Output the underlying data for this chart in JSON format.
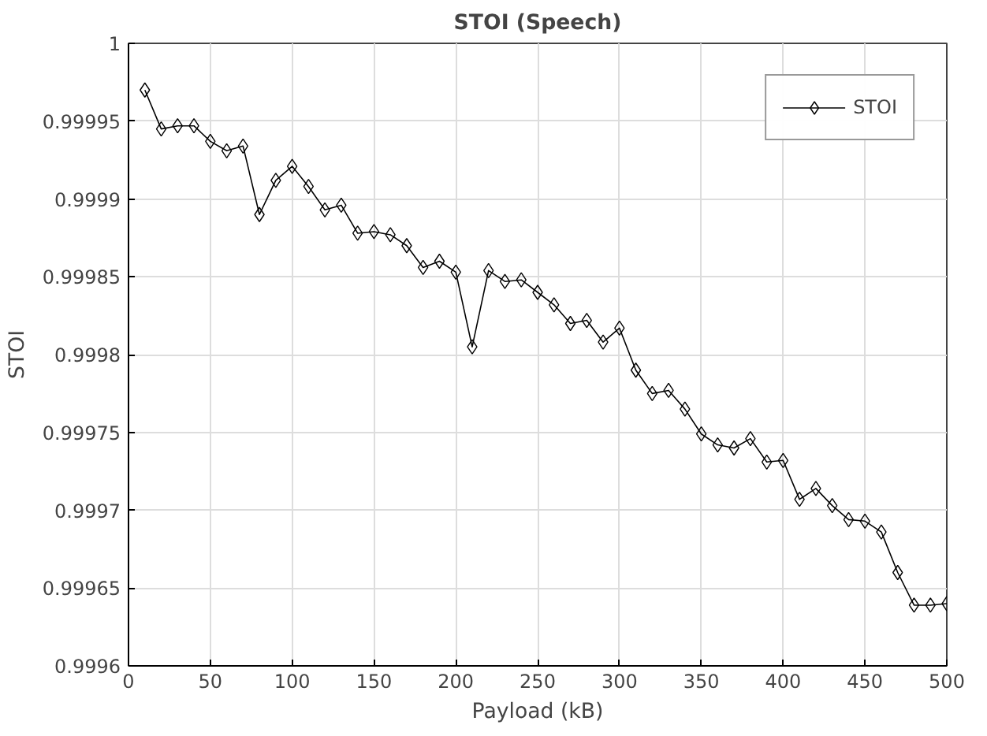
{
  "chart_data": {
    "type": "line",
    "title": "STOI (Speech)",
    "xlabel": "Payload (kB)",
    "ylabel": "STOI",
    "x": [
      10,
      20,
      30,
      40,
      50,
      60,
      70,
      80,
      90,
      100,
      110,
      120,
      130,
      140,
      150,
      160,
      170,
      180,
      190,
      200,
      210,
      220,
      230,
      240,
      250,
      260,
      270,
      280,
      290,
      300,
      310,
      320,
      330,
      340,
      350,
      360,
      370,
      380,
      390,
      400,
      410,
      420,
      430,
      440,
      450,
      460,
      470,
      480,
      490,
      500
    ],
    "series": [
      {
        "name": "STOI",
        "color": "#000000",
        "values": [
          0.99997,
          0.999945,
          0.999947,
          0.999947,
          0.999937,
          0.999931,
          0.999934,
          0.99989,
          0.999912,
          0.999921,
          0.999908,
          0.999893,
          0.999896,
          0.999878,
          0.999879,
          0.999877,
          0.99987,
          0.999856,
          0.99986,
          0.999853,
          0.999805,
          0.999854,
          0.999847,
          0.999848,
          0.99984,
          0.999832,
          0.99982,
          0.999822,
          0.999808,
          0.999817,
          0.99979,
          0.999775,
          0.999777,
          0.999765,
          0.999749,
          0.999742,
          0.99974,
          0.999746,
          0.999731,
          0.999732,
          0.999707,
          0.999714,
          0.999703,
          0.999694,
          0.999693,
          0.999686,
          0.99966,
          0.999639,
          0.999639,
          0.99964
        ]
      }
    ],
    "xlim": [
      0,
      500
    ],
    "xticks": [
      0,
      50,
      100,
      150,
      200,
      250,
      300,
      350,
      400,
      450,
      500
    ],
    "ylim": [
      0.9996,
      1
    ],
    "yticks": [
      0.9996,
      0.99965,
      0.9997,
      0.99975,
      0.9998,
      0.99985,
      0.9999,
      0.99995,
      1
    ],
    "grid": true,
    "legend": "top right",
    "marker": "diamond",
    "line_style": "solid"
  }
}
